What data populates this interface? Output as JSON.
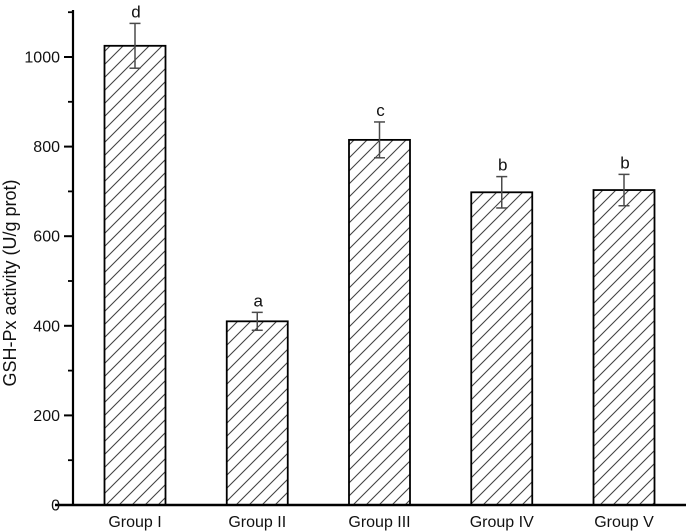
{
  "chart_data": {
    "type": "bar",
    "title": "",
    "xlabel": "",
    "ylabel": "GSH-Px activity (U/g prot)",
    "categories": [
      "Group I",
      "Group II",
      "Group III",
      "Group IV",
      "Group V"
    ],
    "values": [
      1025,
      410,
      815,
      698,
      703
    ],
    "errors": [
      50,
      20,
      40,
      35,
      35
    ],
    "sig_letters": [
      "d",
      "a",
      "c",
      "b",
      "b"
    ],
    "ylim": [
      0,
      1100
    ],
    "yticks_major": [
      0,
      200,
      400,
      600,
      800,
      1000
    ],
    "yticks_minor": [
      100,
      300,
      500,
      700,
      900,
      1100
    ],
    "grid": false,
    "legend": null,
    "bar_style": "diagonal-hatch",
    "colors": {
      "background": "#ffffff",
      "axis": "#000000",
      "bar_outline": "#000000",
      "hatch_line": "#434343",
      "error_bar": "#4a4a4a",
      "text": "#111111"
    }
  }
}
